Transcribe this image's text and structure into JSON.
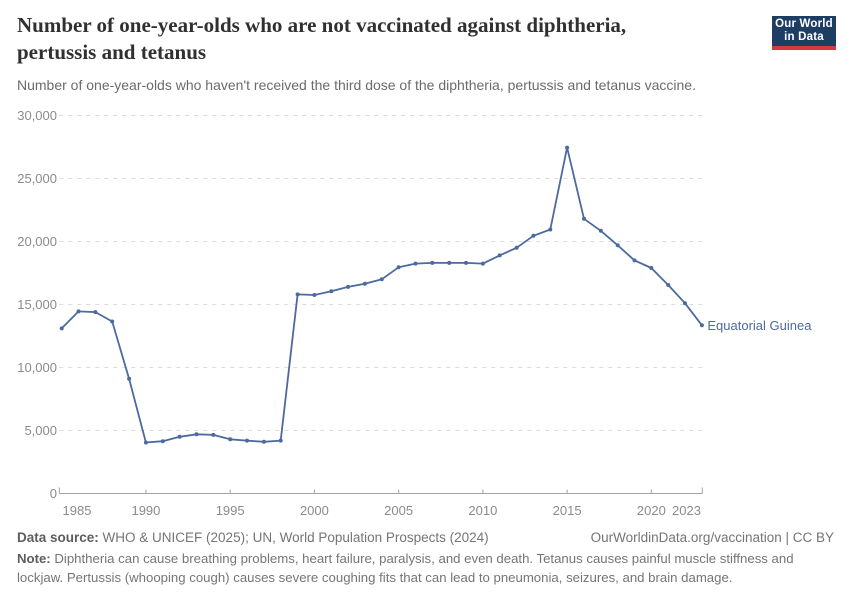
{
  "header": {
    "title_line1": "Number of one-year-olds who are not vaccinated against diphtheria,",
    "title_line2": "pertussis and tetanus",
    "subtitle": "Number of one-year-olds who haven't received the third dose of the diphtheria, pertussis and tetanus vaccine."
  },
  "logo": {
    "line1": "Our World",
    "line2": "in Data",
    "bg_color": "#1d3d63",
    "accent_color": "#d7383f"
  },
  "chart_data": {
    "type": "line",
    "title": "Number of one-year-olds who are not vaccinated against diphtheria, pertussis and tetanus",
    "x": [
      1985,
      1986,
      1987,
      1988,
      1989,
      1990,
      1991,
      1992,
      1993,
      1994,
      1995,
      1996,
      1997,
      1998,
      1999,
      2000,
      2001,
      2002,
      2003,
      2004,
      2005,
      2006,
      2007,
      2008,
      2009,
      2010,
      2011,
      2012,
      2013,
      2014,
      2015,
      2016,
      2017,
      2018,
      2019,
      2020,
      2021,
      2022,
      2023
    ],
    "series": [
      {
        "name": "Equatorial Guinea",
        "color": "#4C6A9C",
        "values": [
          13100,
          14450,
          14400,
          13650,
          9100,
          4050,
          4150,
          4500,
          4700,
          4650,
          4300,
          4200,
          4100,
          4200,
          15800,
          15750,
          16050,
          16400,
          16650,
          17000,
          17950,
          18250,
          18300,
          18300,
          18300,
          18250,
          18900,
          19500,
          20450,
          20950,
          27450,
          21800,
          20850,
          19700,
          18500,
          17900,
          16550,
          15100,
          13350
        ]
      }
    ],
    "xticks": [
      1985,
      1990,
      1995,
      2000,
      2005,
      2010,
      2015,
      2020,
      2023
    ],
    "yticks": [
      0,
      5000,
      10000,
      15000,
      20000,
      25000,
      30000
    ],
    "ylim": [
      0,
      30000
    ],
    "xlim": [
      1984.8,
      2023.2
    ],
    "grid": "horizontal-dashed",
    "legend_position": "end-of-line-label",
    "axis_color": "#a3a3a3",
    "grid_color": "#dcdcdc",
    "tick_label_color": "#8b8b8b"
  },
  "footer": {
    "source_label": "Data source:",
    "source_text": "WHO & UNICEF (2025); UN, World Population Prospects (2024)",
    "link": "OurWorldinData.org/vaccination | CC BY",
    "note_label": "Note:",
    "note_text": "Diphtheria can cause breathing problems, heart failure, paralysis, and even death. Tetanus causes painful muscle stiffness and lockjaw. Pertussis (whooping cough) causes severe coughing fits that can lead to pneumonia, seizures, and brain damage."
  }
}
